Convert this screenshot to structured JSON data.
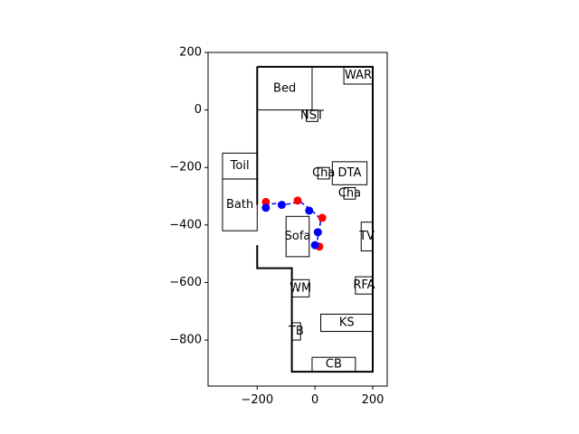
{
  "chart_data": {
    "type": "scatter",
    "title": "",
    "xlabel": "",
    "ylabel": "",
    "xlim": [
      -370,
      250
    ],
    "ylim": [
      -960,
      200
    ],
    "aspect": "equal",
    "grid": false,
    "x_ticks": [
      {
        "value": -200,
        "label": "−200"
      },
      {
        "value": 0,
        "label": "0"
      },
      {
        "value": 200,
        "label": "200"
      }
    ],
    "y_ticks": [
      {
        "value": 200,
        "label": "200"
      },
      {
        "value": 0,
        "label": "0"
      },
      {
        "value": -200,
        "label": "−200"
      },
      {
        "value": -400,
        "label": "−400"
      },
      {
        "value": -600,
        "label": "−600"
      },
      {
        "value": -800,
        "label": "−800"
      }
    ],
    "walls": [
      [
        [
          -200,
          150
        ],
        [
          200,
          150
        ],
        [
          200,
          -910
        ],
        [
          -80,
          -910
        ],
        [
          -80,
          -550
        ],
        [
          -200,
          -550
        ],
        [
          -200,
          -470
        ]
      ],
      [
        [
          -200,
          -330
        ],
        [
          -200,
          150
        ]
      ]
    ],
    "furniture": [
      {
        "label": "Bed",
        "x": [
          -200,
          -10
        ],
        "y": [
          0,
          150
        ]
      },
      {
        "label": "WAR",
        "x": [
          100,
          200
        ],
        "y": [
          90,
          150
        ]
      },
      {
        "label": "NST",
        "x": [
          -30,
          10
        ],
        "y": [
          -40,
          0
        ]
      },
      {
        "label": "Toil",
        "x": [
          -320,
          -200
        ],
        "y": [
          -240,
          -150
        ]
      },
      {
        "label": "Bath",
        "x": [
          -320,
          -200
        ],
        "y": [
          -420,
          -240
        ]
      },
      {
        "label": "Cha",
        "x": [
          10,
          50
        ],
        "y": [
          -240,
          -200
        ]
      },
      {
        "label": "DTA",
        "x": [
          60,
          180
        ],
        "y": [
          -260,
          -180
        ]
      },
      {
        "label": "Cha",
        "x": [
          100,
          140
        ],
        "y": [
          -310,
          -270
        ]
      },
      {
        "label": "Sofa",
        "x": [
          -100,
          -20
        ],
        "y": [
          -510,
          -370
        ]
      },
      {
        "label": "TV",
        "x": [
          160,
          200
        ],
        "y": [
          -490,
          -390
        ]
      },
      {
        "label": "WM",
        "x": [
          -80,
          -20
        ],
        "y": [
          -650,
          -590
        ]
      },
      {
        "label": "RFA",
        "x": [
          140,
          200
        ],
        "y": [
          -640,
          -580
        ]
      },
      {
        "label": "KS",
        "x": [
          20,
          200
        ],
        "y": [
          -770,
          -710
        ]
      },
      {
        "label": "TB",
        "x": [
          -80,
          -50
        ],
        "y": [
          -800,
          -740
        ]
      },
      {
        "label": "CB",
        "x": [
          -10,
          140
        ],
        "y": [
          -910,
          -860
        ]
      }
    ],
    "path": {
      "color": "#0000ff",
      "style": "dashed",
      "x": [
        -170,
        -160,
        -140,
        -110,
        -80,
        -50,
        -10,
        10,
        20,
        15,
        5,
        10
      ],
      "y": [
        -340,
        -330,
        -325,
        -330,
        -325,
        -320,
        -350,
        -370,
        -380,
        -420,
        -465,
        -475
      ]
    },
    "series": [
      {
        "color": "#ff0000",
        "x": [
          -170,
          -60,
          25,
          15
        ],
        "y": [
          -320,
          -315,
          -375,
          -475
        ]
      },
      {
        "color": "#0000ff",
        "x": [
          -170,
          -115,
          -20,
          10,
          0
        ],
        "y": [
          -340,
          -330,
          -350,
          -425,
          -470
        ]
      }
    ]
  }
}
